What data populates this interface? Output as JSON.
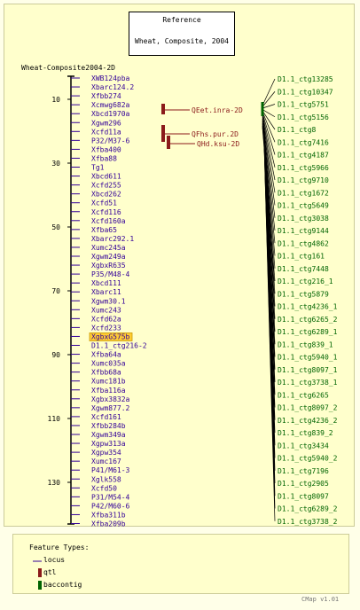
{
  "reference": {
    "title": "Reference",
    "subtitle": "Wheat, Composite, 2004"
  },
  "map_name": "Wheat-Composite2004-2D",
  "axis_ticks": [
    10,
    30,
    50,
    70,
    90,
    110,
    130
  ],
  "markers": [
    "XWB124pba",
    "Xbarc124.2",
    "Xfbb274",
    "Xcmwg682a",
    "Xbcd1970a",
    "Xgwm296",
    "Xcfd11a",
    "P32/M37-6",
    "Xfba400",
    "Xfba88",
    "Tg1",
    "Xbcd611",
    "Xcfd255",
    "Xbcd262",
    "Xcfd51",
    "Xcfd116",
    "Xcfd160a",
    "Xfba65",
    "Xbarc292.1",
    "Xumc245a",
    "Xgwm249a",
    "XgbxR635",
    "P35/M48-4",
    "Xbcd111",
    "Xbarc11",
    "Xgwm30.1",
    "Xumc243",
    "Xcfd62a",
    "Xcfd233",
    "XgbxG575b",
    "D1.1_ctg216-2",
    "Xfba64a",
    "Xumc035a",
    "Xfbb68a",
    "Xumc181b",
    "Xfba116a",
    "Xgbx3832a",
    "Xgwm877.2",
    "Xcfd161",
    "Xfbb284b",
    "Xgwm349a",
    "Xgpw313a",
    "Xgpw354",
    "Xumc167",
    "P41/M61-3",
    "Xglk558",
    "Xcfd50",
    "P31/M54-4",
    "P42/M60-6",
    "Xfba311b",
    "Xfba209b"
  ],
  "highlighted_marker": "XgbxG575b",
  "qtls": [
    "QEet.inra-2D",
    "QFhs.pur.2D",
    "QHd.ksu-2D"
  ],
  "contigs": [
    "D1.1_ctg13285",
    "D1.1_ctg10347",
    "D1.1_ctg5751",
    "D1.1_ctg5156",
    "D1.1_ctg8",
    "D1.1_ctg7416",
    "D1.1_ctg4187",
    "D1.1_ctg5966",
    "D1.1_ctg9710",
    "D1.1_ctg1672",
    "D1.1_ctg5649",
    "D1.1_ctg3038",
    "D1.1_ctg9144",
    "D1.1_ctg4862",
    "D1.1_ctg161",
    "D1.1_ctg7448",
    "D1.1_ctg216_1",
    "D1.1_ctg5879",
    "D1.1_ctg4236_1",
    "D1.1_ctg6265_2",
    "D1.1_ctg6289_1",
    "D1.1_ctg839_1",
    "D1.1_ctg5940_1",
    "D1.1_ctg8097_1",
    "D1.1_ctg3738_1",
    "D1.1_ctg6265",
    "D1.1_ctg8097_2",
    "D1.1_ctg4236_2",
    "D1.1_ctg839_2",
    "D1.1_ctg3434",
    "D1.1_ctg5940_2",
    "D1.1_ctg7196",
    "D1.1_ctg2905",
    "D1.1_ctg8097",
    "D1.1_ctg6289_2",
    "D1.1_ctg3738_2"
  ],
  "legend": {
    "title": "Feature Types:",
    "items": [
      "locus",
      "qtl",
      "baccontig"
    ]
  },
  "colors": {
    "locus": "#330099",
    "qtl": "#8b1a1a",
    "baccontig": "#006400",
    "highlight": "#ffcc33"
  },
  "footer": "CMap v1.01"
}
